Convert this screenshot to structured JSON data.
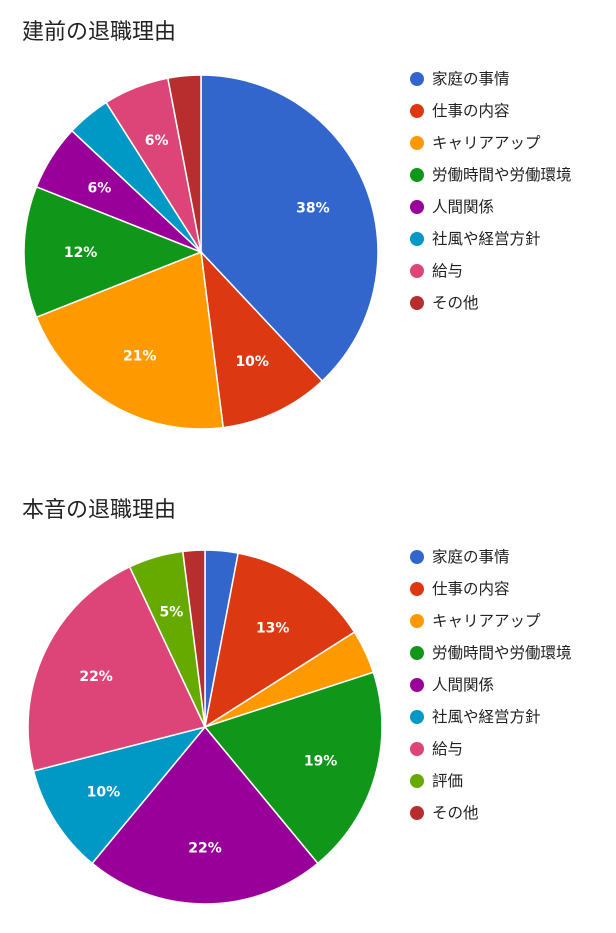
{
  "colors": {
    "family": "#3366cc",
    "work": "#dc3912",
    "career": "#ff9900",
    "hours": "#109618",
    "relations": "#990099",
    "culture": "#0099c6",
    "salary": "#dd4477",
    "evaluation": "#66aa00",
    "other": "#b82e2e"
  },
  "chart_data": [
    {
      "type": "pie",
      "title": "建前の退職理由",
      "slices": [
        {
          "label": "家庭の事情",
          "value": 38,
          "display": "38%",
          "color": "#3366cc"
        },
        {
          "label": "仕事の内容",
          "value": 10,
          "display": "10%",
          "color": "#dc3912"
        },
        {
          "label": "キャリアアップ",
          "value": 21,
          "display": "21%",
          "color": "#ff9900"
        },
        {
          "label": "労働時間や労働環境",
          "value": 12,
          "display": "12%",
          "color": "#109618"
        },
        {
          "label": "人間関係",
          "value": 6,
          "display": "6%",
          "color": "#990099"
        },
        {
          "label": "社風や経営方針",
          "value": 4,
          "display": "",
          "color": "#0099c6"
        },
        {
          "label": "給与",
          "value": 6,
          "display": "6%",
          "color": "#dd4477"
        },
        {
          "label": "その他",
          "value": 3,
          "display": "",
          "color": "#b82e2e"
        }
      ],
      "legend_position": "right"
    },
    {
      "type": "pie",
      "title": "本音の退職理由",
      "slices": [
        {
          "label": "家庭の事情",
          "value": 3,
          "display": "",
          "color": "#3366cc"
        },
        {
          "label": "仕事の内容",
          "value": 13,
          "display": "13%",
          "color": "#dc3912"
        },
        {
          "label": "キャリアアップ",
          "value": 4,
          "display": "",
          "color": "#ff9900"
        },
        {
          "label": "労働時間や労働環境",
          "value": 19,
          "display": "19%",
          "color": "#109618"
        },
        {
          "label": "人間関係",
          "value": 22,
          "display": "22%",
          "color": "#990099"
        },
        {
          "label": "社風や経営方針",
          "value": 10,
          "display": "10%",
          "color": "#0099c6"
        },
        {
          "label": "給与",
          "value": 22,
          "display": "22%",
          "color": "#dd4477"
        },
        {
          "label": "評価",
          "value": 5,
          "display": "5%",
          "color": "#66aa00"
        },
        {
          "label": "その他",
          "value": 2,
          "display": "",
          "color": "#b82e2e"
        }
      ],
      "legend_position": "right"
    }
  ]
}
